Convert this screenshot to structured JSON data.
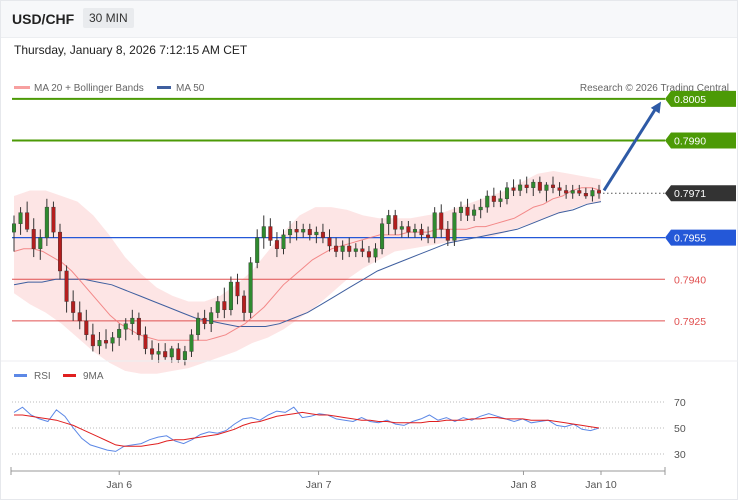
{
  "header": {
    "symbol": "USD/CHF",
    "timeframe": "30 MIN",
    "datetime": "Thursday, January 8, 2026 7:12:15 AM CET"
  },
  "legend": {
    "ma20": "MA 20 + Bollinger Bands",
    "ma50": "MA 50",
    "copyright": "Research © 2026 Trading Central"
  },
  "rsi_legend": {
    "rsi": "RSI",
    "ma9": "9MA"
  },
  "colors": {
    "green": "#4c9a06",
    "blue": "#2458d8",
    "red": "#e05050",
    "ma50": "#3f5f9f",
    "band": "#fcdcdc",
    "ma20": "#f07070",
    "arrow": "#2e5aa6",
    "current": "#333333",
    "rsi": "#5c88e6",
    "rsi_ma": "#e01f1f"
  },
  "chart_data": {
    "type": "candlestick",
    "ylim": [
      0.7912,
      0.801
    ],
    "levels": [
      {
        "label": "0.8005",
        "value": 0.8005,
        "kind": "target"
      },
      {
        "label": "0.7990",
        "value": 0.799,
        "kind": "target"
      },
      {
        "label": "0.7971",
        "value": 0.7971,
        "kind": "current"
      },
      {
        "label": "0.7955",
        "value": 0.7955,
        "kind": "pivot"
      },
      {
        "label": "0.7940",
        "value": 0.794,
        "kind": "support"
      },
      {
        "label": "0.7925",
        "value": 0.7925,
        "kind": "support"
      }
    ],
    "x_ticks": [
      {
        "label": "Jan 6",
        "index": 19
      },
      {
        "label": "Jan 7",
        "index": 55
      },
      {
        "label": "Jan 8",
        "index": 92
      },
      {
        "label": "Jan 10",
        "index": 106
      }
    ],
    "bar_count": 106,
    "ohlc": [
      [
        0.7957,
        0.7963,
        0.795,
        0.796
      ],
      [
        0.796,
        0.7966,
        0.7956,
        0.7964
      ],
      [
        0.7964,
        0.7968,
        0.7957,
        0.7958
      ],
      [
        0.7958,
        0.7962,
        0.7948,
        0.7951
      ],
      [
        0.7951,
        0.7958,
        0.7947,
        0.7955
      ],
      [
        0.7955,
        0.7969,
        0.7952,
        0.7966
      ],
      [
        0.7966,
        0.7968,
        0.7955,
        0.7957
      ],
      [
        0.7957,
        0.796,
        0.794,
        0.7943
      ],
      [
        0.7943,
        0.7945,
        0.7928,
        0.7932
      ],
      [
        0.7932,
        0.7936,
        0.7925,
        0.7928
      ],
      [
        0.7928,
        0.7932,
        0.7922,
        0.7925
      ],
      [
        0.7925,
        0.7929,
        0.7918,
        0.792
      ],
      [
        0.792,
        0.7924,
        0.7914,
        0.7916
      ],
      [
        0.7916,
        0.7921,
        0.7913,
        0.7918
      ],
      [
        0.7918,
        0.7922,
        0.7915,
        0.7917
      ],
      [
        0.7917,
        0.7921,
        0.7914,
        0.7919
      ],
      [
        0.7919,
        0.7924,
        0.7916,
        0.7922
      ],
      [
        0.7922,
        0.7926,
        0.7918,
        0.7924
      ],
      [
        0.7924,
        0.7929,
        0.792,
        0.7926
      ],
      [
        0.7926,
        0.7928,
        0.7918,
        0.792
      ],
      [
        0.792,
        0.7923,
        0.7913,
        0.7915
      ],
      [
        0.7915,
        0.7918,
        0.7911,
        0.7913
      ],
      [
        0.7913,
        0.7917,
        0.791,
        0.7914
      ],
      [
        0.7914,
        0.7917,
        0.7911,
        0.7912
      ],
      [
        0.7912,
        0.7916,
        0.791,
        0.7915
      ],
      [
        0.7915,
        0.7917,
        0.791,
        0.7911
      ],
      [
        0.7911,
        0.7916,
        0.7909,
        0.7914
      ],
      [
        0.7914,
        0.7922,
        0.7912,
        0.792
      ],
      [
        0.792,
        0.7928,
        0.7918,
        0.7926
      ],
      [
        0.7926,
        0.7929,
        0.7922,
        0.7924
      ],
      [
        0.7924,
        0.793,
        0.7921,
        0.7928
      ],
      [
        0.7928,
        0.7934,
        0.7926,
        0.7932
      ],
      [
        0.7932,
        0.7937,
        0.7926,
        0.7929
      ],
      [
        0.7929,
        0.7941,
        0.7927,
        0.7939
      ],
      [
        0.7939,
        0.7942,
        0.7931,
        0.7934
      ],
      [
        0.7934,
        0.7936,
        0.7925,
        0.7928
      ],
      [
        0.7928,
        0.7948,
        0.7926,
        0.7946
      ],
      [
        0.7946,
        0.7958,
        0.7944,
        0.7955
      ],
      [
        0.7955,
        0.7963,
        0.7951,
        0.7959
      ],
      [
        0.7959,
        0.7962,
        0.7952,
        0.7954
      ],
      [
        0.7954,
        0.7957,
        0.7948,
        0.7951
      ],
      [
        0.7951,
        0.7958,
        0.7949,
        0.7956
      ],
      [
        0.7956,
        0.7961,
        0.7953,
        0.7958
      ],
      [
        0.7958,
        0.7961,
        0.7954,
        0.7957
      ],
      [
        0.7957,
        0.796,
        0.7955,
        0.7958
      ],
      [
        0.7958,
        0.796,
        0.7954,
        0.7956
      ],
      [
        0.7956,
        0.7959,
        0.7953,
        0.7957
      ],
      [
        0.7957,
        0.796,
        0.7953,
        0.7955
      ],
      [
        0.7955,
        0.7958,
        0.795,
        0.7952
      ],
      [
        0.7952,
        0.7955,
        0.7948,
        0.795
      ],
      [
        0.795,
        0.7954,
        0.7947,
        0.7952
      ],
      [
        0.7952,
        0.7955,
        0.7948,
        0.795
      ],
      [
        0.795,
        0.7953,
        0.7948,
        0.7951
      ],
      [
        0.7951,
        0.7954,
        0.7948,
        0.795
      ],
      [
        0.795,
        0.7952,
        0.7946,
        0.7948
      ],
      [
        0.7948,
        0.7953,
        0.7946,
        0.7951
      ],
      [
        0.7951,
        0.7962,
        0.7949,
        0.796
      ],
      [
        0.796,
        0.7965,
        0.7956,
        0.7963
      ],
      [
        0.7963,
        0.7965,
        0.7956,
        0.7958
      ],
      [
        0.7958,
        0.7961,
        0.7955,
        0.7959
      ],
      [
        0.7959,
        0.7961,
        0.7955,
        0.7957
      ],
      [
        0.7957,
        0.796,
        0.7955,
        0.7958
      ],
      [
        0.7958,
        0.796,
        0.7954,
        0.7956
      ],
      [
        0.7956,
        0.7959,
        0.7953,
        0.7955
      ],
      [
        0.7955,
        0.7966,
        0.7953,
        0.7964
      ],
      [
        0.7964,
        0.7967,
        0.7955,
        0.7958
      ],
      [
        0.7958,
        0.7961,
        0.7952,
        0.7954
      ],
      [
        0.7954,
        0.7966,
        0.7952,
        0.7964
      ],
      [
        0.7964,
        0.7968,
        0.7961,
        0.7966
      ],
      [
        0.7966,
        0.7969,
        0.7961,
        0.7963
      ],
      [
        0.7963,
        0.7967,
        0.7961,
        0.7965
      ],
      [
        0.7965,
        0.7969,
        0.7962,
        0.7966
      ],
      [
        0.7966,
        0.7972,
        0.7964,
        0.797
      ],
      [
        0.797,
        0.7973,
        0.7966,
        0.7968
      ],
      [
        0.7968,
        0.7972,
        0.7966,
        0.7969
      ],
      [
        0.7969,
        0.7975,
        0.7967,
        0.7973
      ],
      [
        0.7973,
        0.7976,
        0.797,
        0.7972
      ],
      [
        0.7972,
        0.7976,
        0.797,
        0.7974
      ],
      [
        0.7974,
        0.7977,
        0.7971,
        0.7973
      ],
      [
        0.7973,
        0.7976,
        0.797,
        0.7975
      ],
      [
        0.7975,
        0.7977,
        0.7971,
        0.7972
      ],
      [
        0.7972,
        0.7975,
        0.7968,
        0.7974
      ],
      [
        0.7974,
        0.7977,
        0.7971,
        0.7973
      ],
      [
        0.7973,
        0.7975,
        0.797,
        0.7972
      ],
      [
        0.7972,
        0.7974,
        0.7969,
        0.7971
      ],
      [
        0.7971,
        0.7974,
        0.7969,
        0.7972
      ],
      [
        0.7972,
        0.7974,
        0.797,
        0.7971
      ],
      [
        0.7971,
        0.7973,
        0.7969,
        0.797
      ],
      [
        0.797,
        0.7973,
        0.7968,
        0.7972
      ],
      [
        0.7972,
        0.7974,
        0.7969,
        0.7971
      ]
    ],
    "ma20": [
      0.795,
      0.7951,
      0.7951,
      0.795,
      0.7948,
      0.7946,
      0.7943,
      0.7939,
      0.7935,
      0.7931,
      0.7927,
      0.7924,
      0.7922,
      0.792,
      0.7919,
      0.7918,
      0.7918,
      0.7918,
      0.7918,
      0.7918,
      0.7918,
      0.7919,
      0.792,
      0.7922,
      0.7924,
      0.7927,
      0.793,
      0.7934,
      0.7938,
      0.7941,
      0.7944,
      0.7947,
      0.7949,
      0.7951,
      0.7952,
      0.7953,
      0.7954,
      0.7955,
      0.7956,
      0.7956,
      0.7956,
      0.7957,
      0.7957,
      0.7957,
      0.7958,
      0.7958,
      0.7958,
      0.7958,
      0.7959,
      0.7959,
      0.796,
      0.7961,
      0.7962,
      0.7964,
      0.7966,
      0.7967,
      0.7969,
      0.797,
      0.7972,
      0.7973,
      0.7973,
      0.7972
    ],
    "ma50": [
      0.7938,
      0.7939,
      0.7939,
      0.794,
      0.794,
      0.794,
      0.7939,
      0.7938,
      0.7936,
      0.7934,
      0.7932,
      0.793,
      0.7928,
      0.7926,
      0.7925,
      0.7924,
      0.7923,
      0.7923,
      0.7923,
      0.7924,
      0.7926,
      0.7928,
      0.7931,
      0.7934,
      0.7937,
      0.794,
      0.7943,
      0.7945,
      0.7947,
      0.7949,
      0.7951,
      0.7953,
      0.7954,
      0.7955,
      0.7956,
      0.7957,
      0.7958,
      0.796,
      0.7962,
      0.7964,
      0.7965,
      0.7967,
      0.7968
    ],
    "band_upper": [
      0.797,
      0.7972,
      0.7972,
      0.797,
      0.7968,
      0.7963,
      0.7956,
      0.7948,
      0.7942,
      0.7937,
      0.7934,
      0.7932,
      0.7932,
      0.7934,
      0.7938,
      0.7943,
      0.795,
      0.7957,
      0.7963,
      0.7966,
      0.7966,
      0.7965,
      0.7963,
      0.7962,
      0.7962,
      0.7962,
      0.7963,
      0.7964,
      0.7966,
      0.7968,
      0.797,
      0.7972,
      0.7975,
      0.7978,
      0.7979,
      0.7978,
      0.7977,
      0.7976
    ],
    "band_lower": [
      0.7935,
      0.7931,
      0.7928,
      0.7924,
      0.7919,
      0.7914,
      0.791,
      0.7907,
      0.7906,
      0.7906,
      0.7907,
      0.7908,
      0.791,
      0.7912,
      0.7914,
      0.7917,
      0.7919,
      0.7922,
      0.7926,
      0.793,
      0.7935,
      0.794,
      0.7944,
      0.7947,
      0.795,
      0.7951,
      0.7952,
      0.7953,
      0.7954,
      0.7955,
      0.7955,
      0.7957,
      0.7959,
      0.7961,
      0.7963,
      0.7965,
      0.7967,
      0.7968
    ],
    "arrow": {
      "from_index": 106,
      "from_value": 0.7972,
      "to_index": 118,
      "to_value": 0.8004
    },
    "rsi": {
      "ylim": [
        20,
        80
      ],
      "ticks": [
        70,
        50,
        30
      ],
      "values": [
        62,
        66,
        60,
        57,
        55,
        64,
        59,
        50,
        42,
        37,
        35,
        33,
        32,
        36,
        37,
        38,
        41,
        43,
        44,
        40,
        38,
        41,
        45,
        47,
        46,
        48,
        53,
        57,
        58,
        56,
        60,
        63,
        62,
        66,
        58,
        59,
        61,
        60,
        57,
        56,
        55,
        58,
        55,
        54,
        56,
        53,
        52,
        55,
        57,
        60,
        56,
        58,
        55,
        58,
        56,
        59,
        61,
        59,
        57,
        55,
        57,
        54,
        55,
        56,
        52,
        51,
        53,
        49,
        48,
        50
      ],
      "ma9": [
        60,
        60,
        59,
        58,
        57,
        56,
        54,
        52,
        49,
        46,
        43,
        40,
        37,
        36,
        36,
        36,
        37,
        38,
        40,
        41,
        41,
        42,
        43,
        44,
        45,
        47,
        49,
        52,
        54,
        55,
        57,
        59,
        60,
        61,
        62,
        61,
        60,
        60,
        59,
        58,
        57,
        56,
        56,
        55,
        55,
        54,
        54,
        54,
        54,
        55,
        55,
        56,
        56,
        56,
        57,
        57,
        58,
        58,
        57,
        57,
        57,
        56,
        56,
        56,
        55,
        54,
        53,
        52,
        51,
        50
      ]
    }
  }
}
